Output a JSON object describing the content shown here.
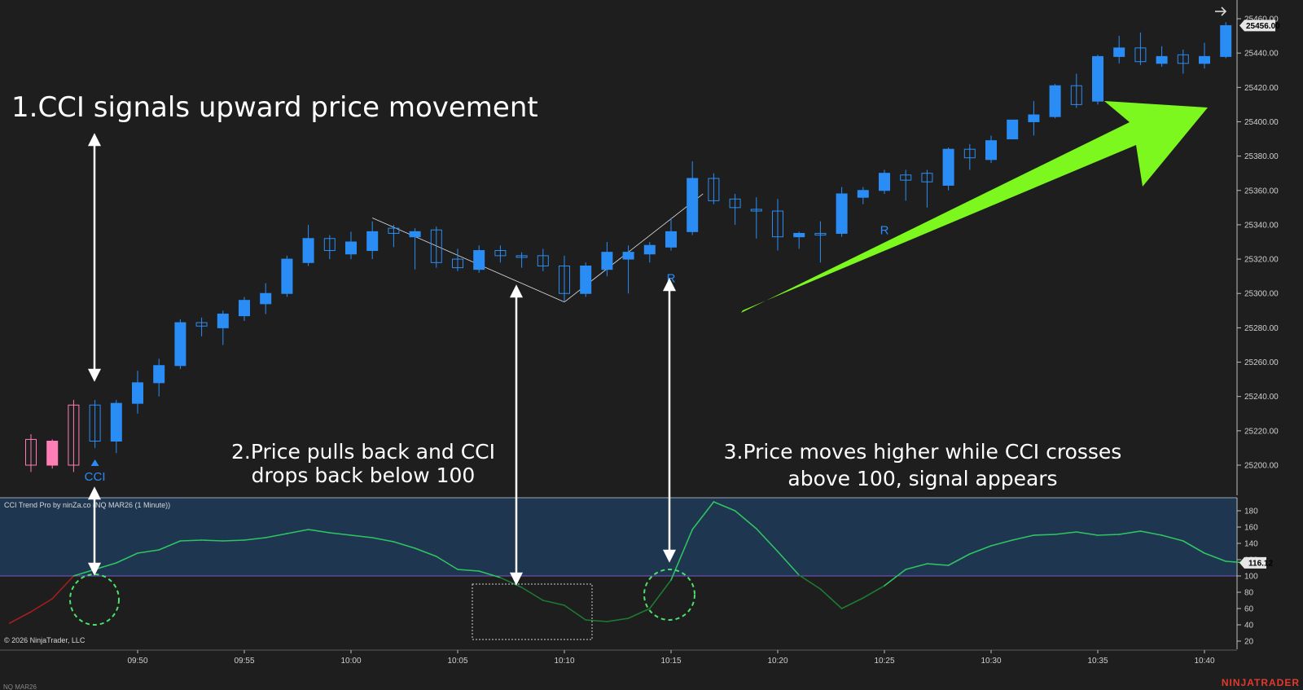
{
  "chart_data": [
    {
      "type": "candlestick",
      "instrument_label": "NQ MAR26",
      "y_ticks": [
        25200,
        25220,
        25240,
        25260,
        25280,
        25300,
        25320,
        25340,
        25360,
        25380,
        25400,
        25420,
        25440,
        25460
      ],
      "ylim": [
        25180,
        25465
      ],
      "x_ticks": [
        "09:50",
        "09:55",
        "10:00",
        "10:05",
        "10:10",
        "10:15",
        "10:20",
        "10:25",
        "10:30",
        "10:35",
        "10:40"
      ],
      "x_tick_index": [
        5,
        10,
        15,
        20,
        25,
        30,
        35,
        40,
        45,
        50,
        55
      ],
      "last_price": "25456.00",
      "candles": [
        {
          "o": 25200,
          "h": 25218,
          "l": 25196,
          "c": 25215,
          "color": "#ff7eb6",
          "hollow": true
        },
        {
          "o": 25214,
          "h": 25215,
          "l": 25198,
          "c": 25200,
          "color": "#ff7eb6",
          "hollow": false
        },
        {
          "o": 25200,
          "h": 25238,
          "l": 25196,
          "c": 25235,
          "color": "#ff7eb6",
          "hollow": true
        },
        {
          "o": 25214,
          "h": 25238,
          "l": 25210,
          "c": 25235,
          "color": "#2a8df5",
          "hollow": true
        },
        {
          "o": 25214,
          "h": 25238,
          "l": 25207,
          "c": 25236,
          "color": "#2a8df5",
          "hollow": false
        },
        {
          "o": 25236,
          "h": 25255,
          "l": 25230,
          "c": 25248,
          "color": "#2a8df5",
          "hollow": false
        },
        {
          "o": 25248,
          "h": 25262,
          "l": 25240,
          "c": 25258,
          "color": "#2a8df5",
          "hollow": false
        },
        {
          "o": 25258,
          "h": 25285,
          "l": 25256,
          "c": 25283,
          "color": "#2a8df5",
          "hollow": false
        },
        {
          "o": 25281,
          "h": 25286,
          "l": 25275,
          "c": 25283,
          "color": "#2a8df5",
          "hollow": true
        },
        {
          "o": 25280,
          "h": 25290,
          "l": 25270,
          "c": 25288,
          "color": "#2a8df5",
          "hollow": false
        },
        {
          "o": 25287,
          "h": 25298,
          "l": 25284,
          "c": 25296,
          "color": "#2a8df5",
          "hollow": false
        },
        {
          "o": 25294,
          "h": 25306,
          "l": 25288,
          "c": 25300,
          "color": "#2a8df5",
          "hollow": false
        },
        {
          "o": 25300,
          "h": 25322,
          "l": 25298,
          "c": 25320,
          "color": "#2a8df5",
          "hollow": false
        },
        {
          "o": 25318,
          "h": 25340,
          "l": 25316,
          "c": 25332,
          "color": "#2a8df5",
          "hollow": false
        },
        {
          "o": 25325,
          "h": 25334,
          "l": 25320,
          "c": 25332,
          "color": "#2a8df5",
          "hollow": true
        },
        {
          "o": 25323,
          "h": 25336,
          "l": 25320,
          "c": 25330,
          "color": "#2a8df5",
          "hollow": false
        },
        {
          "o": 25325,
          "h": 25342,
          "l": 25320,
          "c": 25336,
          "color": "#2a8df5",
          "hollow": false
        },
        {
          "o": 25335,
          "h": 25340,
          "l": 25327,
          "c": 25338,
          "color": "#2a8df5",
          "hollow": true
        },
        {
          "o": 25333,
          "h": 25338,
          "l": 25314,
          "c": 25336,
          "color": "#2a8df5",
          "hollow": false
        },
        {
          "o": 25337,
          "h": 25339,
          "l": 25315,
          "c": 25318,
          "color": "#2a8df5",
          "hollow": true
        },
        {
          "o": 25320,
          "h": 25326,
          "l": 25313,
          "c": 25315,
          "color": "#2a8df5",
          "hollow": true
        },
        {
          "o": 25314,
          "h": 25328,
          "l": 25312,
          "c": 25325,
          "color": "#2a8df5",
          "hollow": false
        },
        {
          "o": 25322,
          "h": 25328,
          "l": 25318,
          "c": 25325,
          "color": "#2a8df5",
          "hollow": true
        },
        {
          "o": 25321,
          "h": 25324,
          "l": 25315,
          "c": 25322,
          "color": "#2a8df5",
          "hollow": true
        },
        {
          "o": 25322,
          "h": 25326,
          "l": 25313,
          "c": 25316,
          "color": "#2a8df5",
          "hollow": true
        },
        {
          "o": 25316,
          "h": 25322,
          "l": 25295,
          "c": 25300,
          "color": "#2a8df5",
          "hollow": true
        },
        {
          "o": 25300,
          "h": 25318,
          "l": 25298,
          "c": 25316,
          "color": "#2a8df5",
          "hollow": false
        },
        {
          "o": 25314,
          "h": 25330,
          "l": 25310,
          "c": 25324,
          "color": "#2a8df5",
          "hollow": false
        },
        {
          "o": 25320,
          "h": 25328,
          "l": 25300,
          "c": 25324,
          "color": "#2a8df5",
          "hollow": false
        },
        {
          "o": 25323,
          "h": 25330,
          "l": 25318,
          "c": 25328,
          "color": "#2a8df5",
          "hollow": false
        },
        {
          "o": 25327,
          "h": 25344,
          "l": 25325,
          "c": 25336,
          "color": "#2a8df5",
          "hollow": false
        },
        {
          "o": 25336,
          "h": 25377,
          "l": 25334,
          "c": 25367,
          "color": "#2a8df5",
          "hollow": false
        },
        {
          "o": 25367,
          "h": 25370,
          "l": 25352,
          "c": 25354,
          "color": "#2a8df5",
          "hollow": true
        },
        {
          "o": 25355,
          "h": 25358,
          "l": 25340,
          "c": 25350,
          "color": "#2a8df5",
          "hollow": true
        },
        {
          "o": 25349,
          "h": 25356,
          "l": 25332,
          "c": 25348,
          "color": "#2a8df5",
          "hollow": true
        },
        {
          "o": 25348,
          "h": 25355,
          "l": 25325,
          "c": 25333,
          "color": "#2a8df5",
          "hollow": true
        },
        {
          "o": 25333,
          "h": 25336,
          "l": 25326,
          "c": 25335,
          "color": "#2a8df5",
          "hollow": false
        },
        {
          "o": 25334,
          "h": 25342,
          "l": 25318,
          "c": 25335,
          "color": "#2a8df5",
          "hollow": true
        },
        {
          "o": 25335,
          "h": 25362,
          "l": 25333,
          "c": 25358,
          "color": "#2a8df5",
          "hollow": false
        },
        {
          "o": 25356,
          "h": 25362,
          "l": 25352,
          "c": 25360,
          "color": "#2a8df5",
          "hollow": false
        },
        {
          "o": 25360,
          "h": 25372,
          "l": 25358,
          "c": 25370,
          "color": "#2a8df5",
          "hollow": false
        },
        {
          "o": 25366,
          "h": 25372,
          "l": 25354,
          "c": 25369,
          "color": "#2a8df5",
          "hollow": true
        },
        {
          "o": 25370,
          "h": 25372,
          "l": 25350,
          "c": 25365,
          "color": "#2a8df5",
          "hollow": true
        },
        {
          "o": 25363,
          "h": 25385,
          "l": 25360,
          "c": 25384,
          "color": "#2a8df5",
          "hollow": false
        },
        {
          "o": 25379,
          "h": 25387,
          "l": 25372,
          "c": 25384,
          "color": "#2a8df5",
          "hollow": true
        },
        {
          "o": 25378,
          "h": 25392,
          "l": 25376,
          "c": 25389,
          "color": "#2a8df5",
          "hollow": false
        },
        {
          "o": 25390,
          "h": 25401,
          "l": 25390,
          "c": 25401,
          "color": "#2a8df5",
          "hollow": false
        },
        {
          "o": 25400,
          "h": 25412,
          "l": 25392,
          "c": 25404,
          "color": "#2a8df5",
          "hollow": false
        },
        {
          "o": 25403,
          "h": 25422,
          "l": 25402,
          "c": 25421,
          "color": "#2a8df5",
          "hollow": false
        },
        {
          "o": 25410,
          "h": 25428,
          "l": 25408,
          "c": 25421,
          "color": "#2a8df5",
          "hollow": true
        },
        {
          "o": 25412,
          "h": 25439,
          "l": 25410,
          "c": 25438,
          "color": "#2a8df5",
          "hollow": false
        },
        {
          "o": 25438,
          "h": 25450,
          "l": 25434,
          "c": 25443,
          "color": "#2a8df5",
          "hollow": false
        },
        {
          "o": 25443,
          "h": 25452,
          "l": 25433,
          "c": 25435,
          "color": "#2a8df5",
          "hollow": true
        },
        {
          "o": 25434,
          "h": 25444,
          "l": 25432,
          "c": 25438,
          "color": "#2a8df5",
          "hollow": false
        },
        {
          "o": 25434,
          "h": 25442,
          "l": 25428,
          "c": 25439,
          "color": "#2a8df5",
          "hollow": true
        },
        {
          "o": 25434,
          "h": 25446,
          "l": 25431,
          "c": 25438,
          "color": "#2a8df5",
          "hollow": false
        },
        {
          "o": 25438,
          "h": 25458,
          "l": 25437,
          "c": 25456,
          "color": "#2a8df5",
          "hollow": false
        }
      ],
      "markers": [
        {
          "index": 3,
          "label": "CCI",
          "color": "#2a8df5",
          "price": 25200
        },
        {
          "index": 30,
          "label": "R",
          "color": "#2a8df5",
          "price": 25316
        },
        {
          "index": 40,
          "label": "R",
          "color": "#2a8df5",
          "price": 25344
        }
      ],
      "trendlines": [
        {
          "from": {
            "index": 16,
            "price": 25344
          },
          "to": {
            "index": 25,
            "price": 25295
          },
          "color": "#e0e0e0"
        },
        {
          "from": {
            "index": 25,
            "price": 25295
          },
          "to": {
            "index": 31.5,
            "price": 25358
          },
          "color": "#e0e0e0"
        }
      ]
    },
    {
      "type": "line",
      "panel_label": "CCI Trend Pro by ninZa.co (NQ MAR26 (1 Minute))",
      "copyright": "© 2026 NinjaTrader, LLC",
      "y_ticks": [
        20,
        40,
        60,
        80,
        100,
        120,
        140,
        160,
        180
      ],
      "ylim": [
        12,
        194
      ],
      "threshold": 100,
      "last_value": "116.12",
      "x": [
        -1,
        0,
        1,
        2,
        3,
        4,
        5,
        6,
        7,
        8,
        9,
        10,
        11,
        12,
        13,
        14,
        15,
        16,
        17,
        18,
        19,
        20,
        21,
        22,
        23,
        24,
        25,
        26,
        27,
        28,
        29,
        30,
        31,
        32,
        33,
        34,
        35,
        36,
        37,
        38,
        39,
        40,
        41,
        42,
        43,
        44,
        45,
        46,
        47,
        48,
        49,
        50,
        51,
        52,
        53,
        54,
        55,
        56,
        57
      ],
      "values": [
        42,
        56,
        72,
        100,
        108,
        116,
        128,
        132,
        143,
        144,
        143,
        144,
        147,
        152,
        157,
        153,
        150,
        147,
        142,
        134,
        124,
        108,
        106,
        98,
        86,
        70,
        64,
        46,
        44,
        48,
        60,
        95,
        157,
        191,
        180,
        158,
        130,
        101,
        84,
        60,
        73,
        88,
        108,
        115,
        113,
        127,
        137,
        144,
        150,
        151,
        154,
        150,
        151,
        155,
        150,
        143,
        128,
        118,
        116
      ]
    }
  ],
  "annotations": {
    "note1": "1.CCI signals upward price movement",
    "note2_line1": "2.Price pulls back and CCI",
    "note2_line2": "drops back below 100",
    "note3_line1": "3.Price moves higher while CCI crosses",
    "note3_line2": "above 100, signal appears"
  },
  "watermark": "NINJATRADER",
  "colors": {
    "background": "#1e1e1e",
    "bull": "#2a8df5",
    "bear": "#ff7eb6",
    "cci_panel_fill": "#1f3650",
    "cci_line": "#2ec461",
    "cci_line_low": "#1c7a32",
    "cci_line_start": "#a81d1d",
    "big_arrow": "#7cf81e",
    "circle": "#4be26b",
    "axis_text": "#cfcfcf",
    "threshold_line": "#7b56c8",
    "price_tag": "#e6e6e6",
    "watermark": "#e23a2e"
  },
  "icons": {
    "top_right": "arrow-right-icon"
  }
}
